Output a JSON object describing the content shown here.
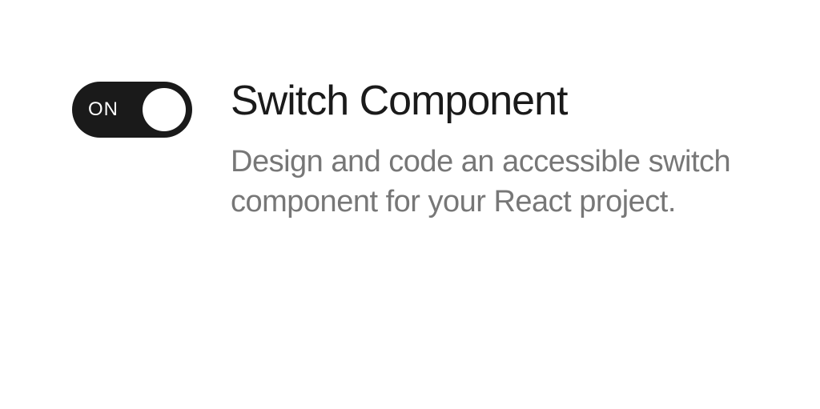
{
  "switch": {
    "state_label": "ON",
    "is_on": true,
    "track_color": "#1a1a1a",
    "thumb_color": "#ffffff",
    "label_color": "#ffffff"
  },
  "content": {
    "title": "Switch Component",
    "description": "Design and code an accessible switch component for your React project."
  },
  "colors": {
    "background": "#ffffff",
    "title_color": "#1a1a1a",
    "description_color": "#777777"
  }
}
